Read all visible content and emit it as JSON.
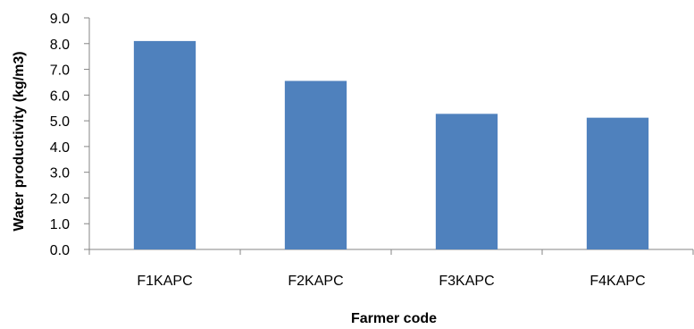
{
  "chart_data": {
    "type": "bar",
    "title": "",
    "xlabel": "Farmer code",
    "ylabel": "Water productivity (kg/m3)",
    "categories": [
      "F1KAPC",
      "F2KAPC",
      "F3KAPC",
      "F4KAPC"
    ],
    "values": [
      8.1,
      6.55,
      5.27,
      5.12
    ],
    "ylim": [
      0,
      9
    ],
    "yticks": [
      "0.0",
      "1.0",
      "2.0",
      "3.0",
      "4.0",
      "5.0",
      "6.0",
      "7.0",
      "8.0",
      "9.0"
    ],
    "grid": false,
    "legend": "none",
    "bar_color": "#4F81BD",
    "axis_color": "#868686"
  }
}
